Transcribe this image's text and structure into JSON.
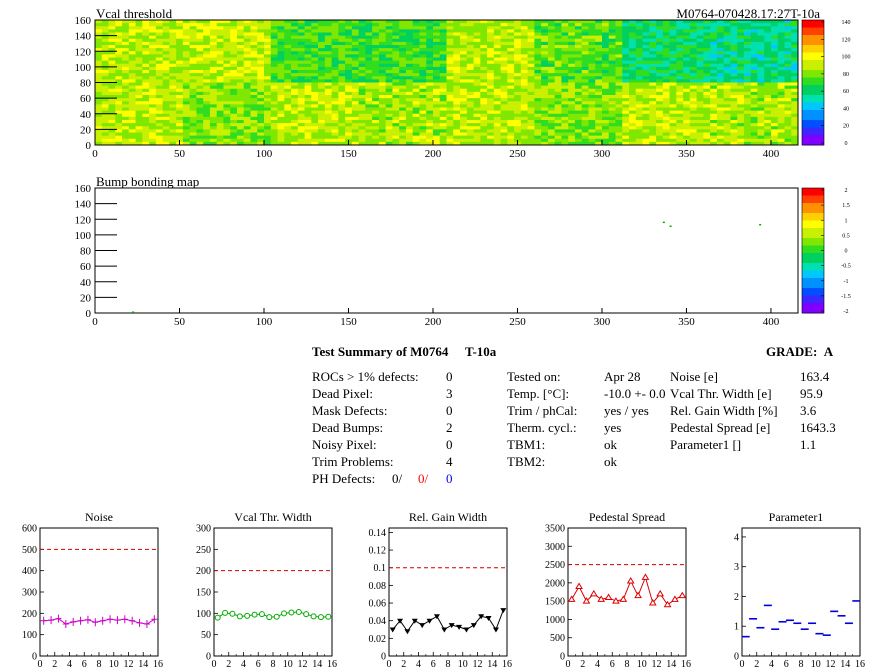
{
  "colors": {
    "red": "#ff0000",
    "blue": "#0000ff",
    "noise": "#cc00cc",
    "vcal": "#00aa00",
    "gain": "#000000",
    "ped": "#dd0000",
    "param": "#0000dd",
    "limit": "#cc0000"
  },
  "maps": {
    "vcal": {
      "title": "Vcal threshold",
      "id": "M0764-070428.17:27T-10a",
      "xticks": [
        "0",
        "50",
        "100",
        "150",
        "200",
        "250",
        "300",
        "350",
        "400"
      ],
      "yticks": [
        "160",
        "140",
        "120",
        "100",
        "80",
        "60",
        "40",
        "20",
        "0"
      ],
      "zticks": [
        "140",
        "120",
        "100",
        "80",
        "60",
        "40",
        "20",
        "0"
      ],
      "roc_levels_top": [
        88,
        90,
        92,
        90,
        95,
        75,
        72,
        82,
        88,
        70,
        58,
        65,
        88,
        82,
        90,
        75,
        72,
        65,
        60,
        62,
        58,
        55,
        78,
        80
      ],
      "roc_levels_bottom": [
        88,
        70,
        85,
        80,
        72,
        76,
        88,
        90,
        92,
        85,
        104,
        82,
        88,
        70,
        85,
        80,
        72,
        76,
        88,
        90,
        92,
        85,
        75,
        80
      ]
    },
    "bump": {
      "title": "Bump bonding map",
      "xticks": [
        "0",
        "50",
        "100",
        "150",
        "200",
        "250",
        "300",
        "350",
        "400"
      ],
      "yticks": [
        "160",
        "140",
        "120",
        "100",
        "80",
        "60",
        "40",
        "20",
        "0"
      ],
      "zticks": [
        "2",
        "1.5",
        "1",
        "0.5",
        "0",
        "-0.5",
        "-1",
        "-1.5",
        "-2"
      ],
      "points": [
        [
          22,
          2
        ],
        [
          336,
          117
        ],
        [
          340,
          112
        ],
        [
          393,
          114
        ]
      ]
    }
  },
  "summary": {
    "title": "Test Summary of M0764",
    "temp_tag": "T-10a",
    "grade_label": "GRADE:",
    "grade": "A",
    "left": [
      {
        "label": "ROCs > 1% defects:",
        "value": "0"
      },
      {
        "label": "Dead Pixel:",
        "value": "3"
      },
      {
        "label": "Mask Defects:",
        "value": "0"
      },
      {
        "label": "Dead Bumps:",
        "value": "2"
      },
      {
        "label": "Noisy Pixel:",
        "value": "0"
      },
      {
        "label": "Trim Problems:",
        "value": "4"
      }
    ],
    "ph_label": "PH Defects:",
    "ph_values": [
      "0/",
      "0/",
      "0"
    ],
    "middle": [
      {
        "label": "Tested on:",
        "value": "Apr 28"
      },
      {
        "label": "Temp. [°C]:",
        "value": "-10.0 +- 0.0"
      },
      {
        "label": "Trim / phCal:",
        "value": "yes / yes"
      },
      {
        "label": "Therm. cycl.:",
        "value": "yes"
      },
      {
        "label": "TBM1:",
        "value": "ok"
      },
      {
        "label": "TBM2:",
        "value": "ok"
      }
    ],
    "right": [
      {
        "label": "Noise [e]",
        "value": "163.4"
      },
      {
        "label": "Vcal Thr. Width [e]",
        "value": "95.9"
      },
      {
        "label": "Rel. Gain Width [%]",
        "value": "3.6"
      },
      {
        "label": "Pedestal Spread [e]",
        "value": "1643.3"
      },
      {
        "label": "Parameter1 []",
        "value": "1.1"
      }
    ]
  },
  "chart_data": [
    {
      "type": "line",
      "title": "Noise",
      "xticks": [
        "0",
        "2",
        "4",
        "6",
        "8",
        "10",
        "12",
        "14",
        "16"
      ],
      "yticks": [
        "0",
        "100",
        "200",
        "300",
        "400",
        "500",
        "600"
      ],
      "ylim": [
        0,
        600
      ],
      "limit": 500,
      "marker": "cross",
      "x": [
        0,
        1,
        2,
        3,
        4,
        5,
        6,
        7,
        8,
        9,
        10,
        11,
        12,
        13,
        14,
        15
      ],
      "values": [
        165,
        168,
        175,
        150,
        160,
        165,
        170,
        158,
        165,
        172,
        168,
        172,
        165,
        155,
        150,
        172
      ]
    },
    {
      "type": "line",
      "title": "Vcal Thr. Width",
      "xticks": [
        "0",
        "2",
        "4",
        "6",
        "8",
        "10",
        "12",
        "14",
        "16"
      ],
      "yticks": [
        "0",
        "50",
        "100",
        "150",
        "200",
        "250",
        "300"
      ],
      "ylim": [
        0,
        300
      ],
      "limit": 200,
      "marker": "circle",
      "x": [
        0,
        1,
        2,
        3,
        4,
        5,
        6,
        7,
        8,
        9,
        10,
        11,
        12,
        13,
        14,
        15
      ],
      "values": [
        90,
        101,
        99,
        93,
        94,
        97,
        98,
        91,
        92,
        100,
        102,
        103,
        98,
        93,
        91,
        92
      ]
    },
    {
      "type": "line",
      "title": "Rel. Gain Width",
      "xticks": [
        "0",
        "2",
        "4",
        "6",
        "8",
        "10",
        "12",
        "14",
        "16"
      ],
      "yticks": [
        "0",
        "0.02",
        "0.04",
        "0.06",
        "0.08",
        "0.1",
        "0.12",
        "0.14"
      ],
      "ylim": [
        0,
        0.145
      ],
      "limit": 0.1,
      "marker": "triangle-down",
      "x": [
        0,
        1,
        2,
        3,
        4,
        5,
        6,
        7,
        8,
        9,
        10,
        11,
        12,
        13,
        14,
        15
      ],
      "values": [
        0.03,
        0.04,
        0.028,
        0.04,
        0.035,
        0.04,
        0.045,
        0.03,
        0.035,
        0.033,
        0.03,
        0.035,
        0.045,
        0.043,
        0.03,
        0.052
      ]
    },
    {
      "type": "line",
      "title": "Pedestal Spread",
      "xticks": [
        "0",
        "2",
        "4",
        "6",
        "8",
        "10",
        "12",
        "14",
        "16"
      ],
      "yticks": [
        "0",
        "500",
        "1000",
        "1500",
        "2000",
        "2500",
        "3000",
        "3500"
      ],
      "ylim": [
        0,
        3500
      ],
      "limit": 2500,
      "marker": "triangle-up",
      "x": [
        0,
        1,
        2,
        3,
        4,
        5,
        6,
        7,
        8,
        9,
        10,
        11,
        12,
        13,
        14,
        15
      ],
      "values": [
        1550,
        1900,
        1500,
        1700,
        1550,
        1600,
        1500,
        1550,
        2050,
        1650,
        2150,
        1450,
        1700,
        1400,
        1550,
        1650
      ]
    },
    {
      "type": "scatter",
      "title": "Parameter1",
      "xticks": [
        "0",
        "2",
        "4",
        "6",
        "8",
        "10",
        "12",
        "14",
        "16"
      ],
      "yticks": [
        "0",
        "1",
        "2",
        "3",
        "4"
      ],
      "ylim": [
        0,
        4.3
      ],
      "marker": "hbar",
      "x": [
        0,
        1,
        2,
        3,
        4,
        5,
        6,
        7,
        8,
        9,
        10,
        11,
        12,
        13,
        14,
        15
      ],
      "values": [
        0.65,
        1.25,
        0.95,
        1.7,
        0.9,
        1.15,
        1.2,
        1.1,
        0.9,
        1.1,
        0.75,
        0.7,
        1.5,
        1.35,
        1.1,
        1.85
      ]
    }
  ]
}
